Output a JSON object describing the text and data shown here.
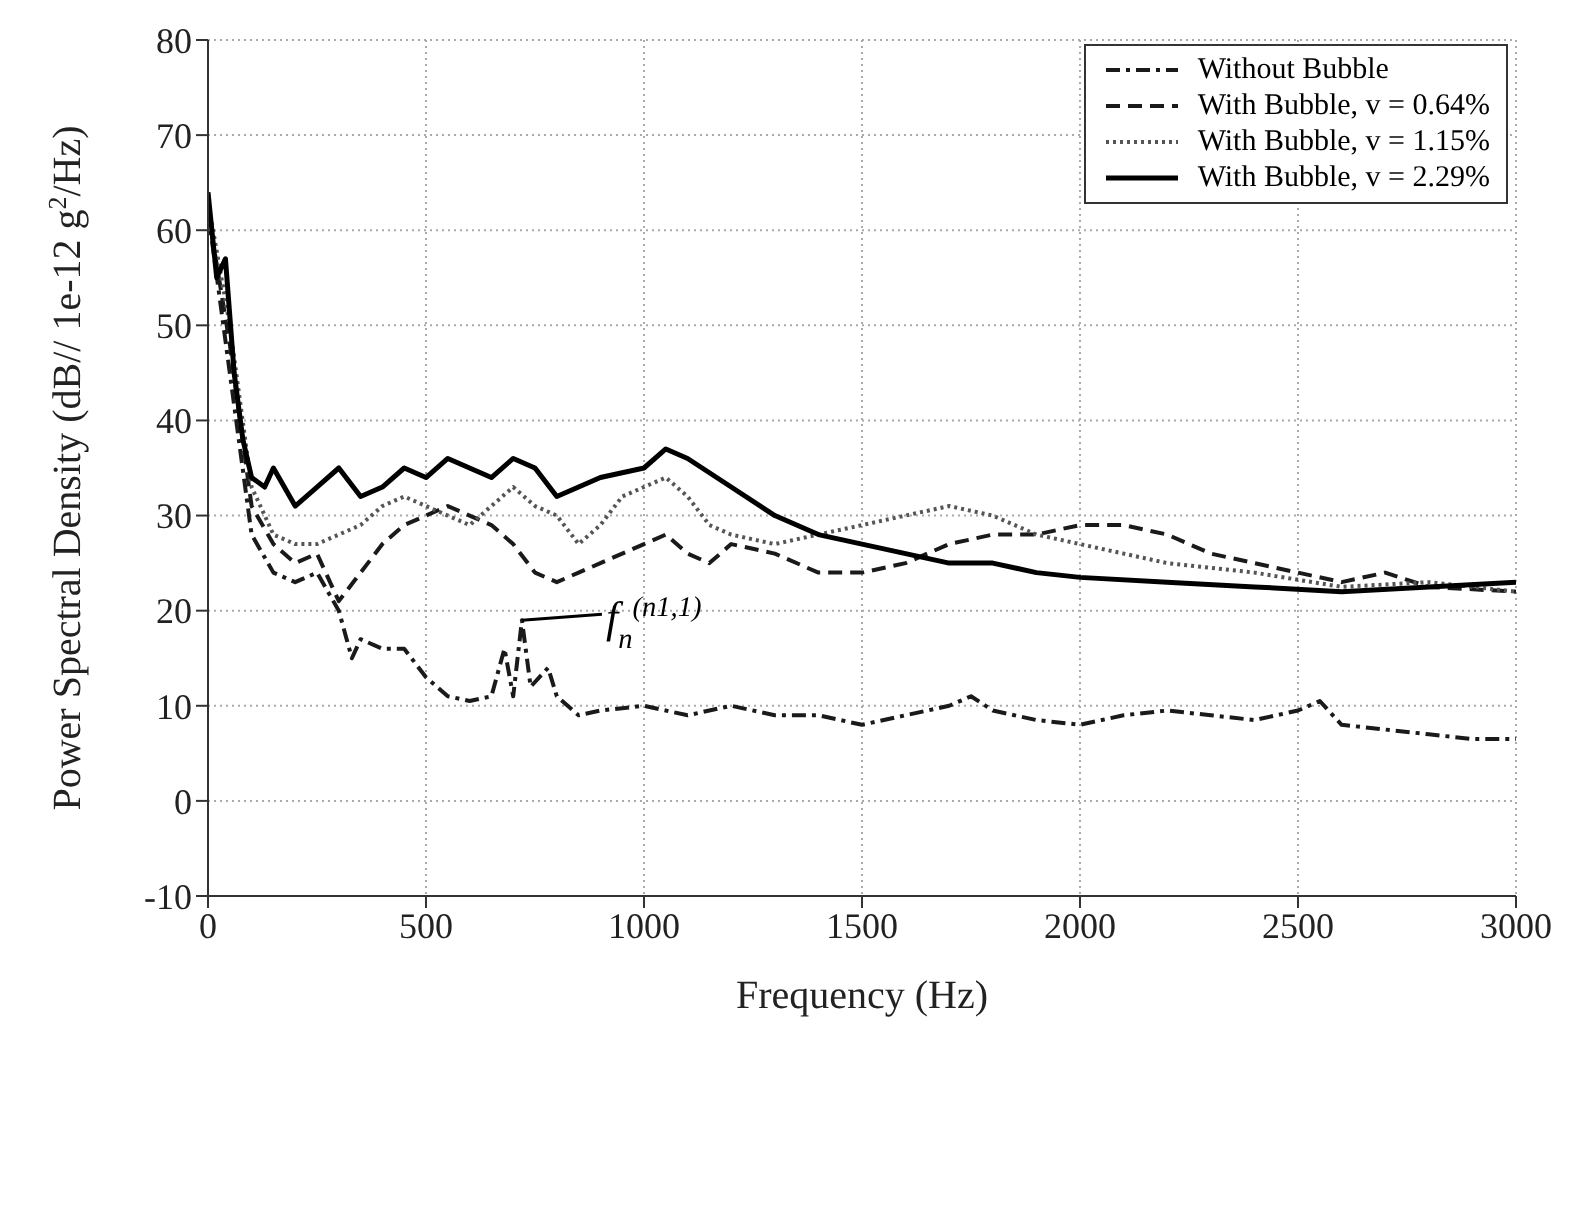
{
  "chart_data": {
    "type": "line",
    "xlabel": "Frequency (Hz)",
    "ylabel": "Power Spectral Density (dB// 1e-12 g$^{2}$/Hz)",
    "xlim": [
      0,
      3000
    ],
    "xticks": [
      0,
      500,
      1000,
      1500,
      2000,
      2500,
      3000
    ],
    "ylim": [
      -10,
      80
    ],
    "yticks": [
      -10,
      0,
      10,
      20,
      30,
      40,
      50,
      60,
      70,
      80
    ],
    "grid": true,
    "legend": "top right",
    "marker": "none",
    "annotations": [
      {
        "text": "f$_{n}$$^{(n1,1)}$",
        "x": 720,
        "y": 19
      }
    ],
    "series": [
      {
        "name": "Without Bubble",
        "color": "#1a1a1a",
        "line_style": "dashdot",
        "x": [
          0,
          50,
          100,
          150,
          200,
          250,
          300,
          330,
          350,
          400,
          450,
          500,
          550,
          600,
          650,
          680,
          700,
          720,
          740,
          780,
          800,
          850,
          900,
          1000,
          1100,
          1200,
          1300,
          1400,
          1500,
          1600,
          1700,
          1750,
          1800,
          1900,
          2000,
          2100,
          2200,
          2300,
          2400,
          2500,
          2550,
          2600,
          2700,
          2800,
          2900,
          3000
        ],
        "values": [
          62,
          45,
          28,
          24,
          23,
          24,
          20,
          15,
          17,
          16,
          16,
          13,
          11,
          10.5,
          11,
          16,
          11,
          19,
          12,
          14,
          11,
          9,
          9.5,
          10,
          9,
          10,
          9,
          9,
          8,
          9,
          10,
          11,
          9.5,
          8.5,
          8,
          9,
          9.5,
          9,
          8.5,
          9.5,
          10.5,
          8,
          7.5,
          7,
          6.5,
          6.5
        ]
      },
      {
        "name": "With Bubble, v = 0.64%",
        "color": "#1a1a1a",
        "line_style": "dashed",
        "x": [
          0,
          50,
          100,
          150,
          200,
          250,
          300,
          350,
          400,
          450,
          500,
          550,
          600,
          650,
          700,
          750,
          800,
          850,
          900,
          950,
          1000,
          1050,
          1100,
          1150,
          1200,
          1300,
          1400,
          1500,
          1600,
          1700,
          1800,
          1900,
          2000,
          2100,
          2200,
          2300,
          2400,
          2500,
          2600,
          2700,
          2800,
          3000
        ],
        "values": [
          62,
          48,
          31,
          27,
          25,
          26,
          21,
          24,
          27,
          29,
          30,
          31,
          30,
          29,
          27,
          24,
          23,
          24,
          25,
          26,
          27,
          28,
          26,
          25,
          27,
          26,
          24,
          24,
          25,
          27,
          28,
          28,
          29,
          29,
          28,
          26,
          25,
          24,
          23,
          24,
          22.5,
          22
        ]
      },
      {
        "name": "With Bubble, v = 1.15%",
        "color": "#555555",
        "line_style": "dotted",
        "x": [
          0,
          50,
          100,
          150,
          200,
          250,
          300,
          350,
          400,
          450,
          500,
          550,
          600,
          650,
          700,
          750,
          800,
          850,
          900,
          950,
          1000,
          1050,
          1100,
          1150,
          1200,
          1300,
          1400,
          1500,
          1600,
          1700,
          1800,
          1900,
          2000,
          2100,
          2200,
          2400,
          2600,
          2800,
          3000
        ],
        "values": [
          63,
          50,
          33,
          28,
          27,
          27,
          28,
          29,
          31,
          32,
          31,
          30,
          29,
          31,
          33,
          31,
          30,
          27,
          29,
          32,
          33,
          34,
          32,
          29,
          28,
          27,
          28,
          29,
          30,
          31,
          30,
          28,
          27,
          26,
          25,
          24,
          22.5,
          23,
          22
        ]
      },
      {
        "name": "With Bubble, v = 2.29%",
        "color": "#000000",
        "line_style": "solid",
        "x": [
          0,
          20,
          40,
          60,
          80,
          100,
          130,
          150,
          200,
          250,
          300,
          350,
          400,
          450,
          500,
          550,
          600,
          650,
          700,
          750,
          800,
          850,
          900,
          1000,
          1050,
          1100,
          1200,
          1300,
          1400,
          1500,
          1600,
          1700,
          1800,
          1900,
          2000,
          2200,
          2400,
          2600,
          2800,
          3000
        ],
        "values": [
          64,
          55,
          57,
          45,
          38,
          34,
          33,
          35,
          31,
          33,
          35,
          32,
          33,
          35,
          34,
          36,
          35,
          34,
          36,
          35,
          32,
          33,
          34,
          35,
          37,
          36,
          33,
          30,
          28,
          27,
          26,
          25,
          25,
          24,
          23.5,
          23,
          22.5,
          22,
          22.5,
          23
        ]
      }
    ]
  }
}
